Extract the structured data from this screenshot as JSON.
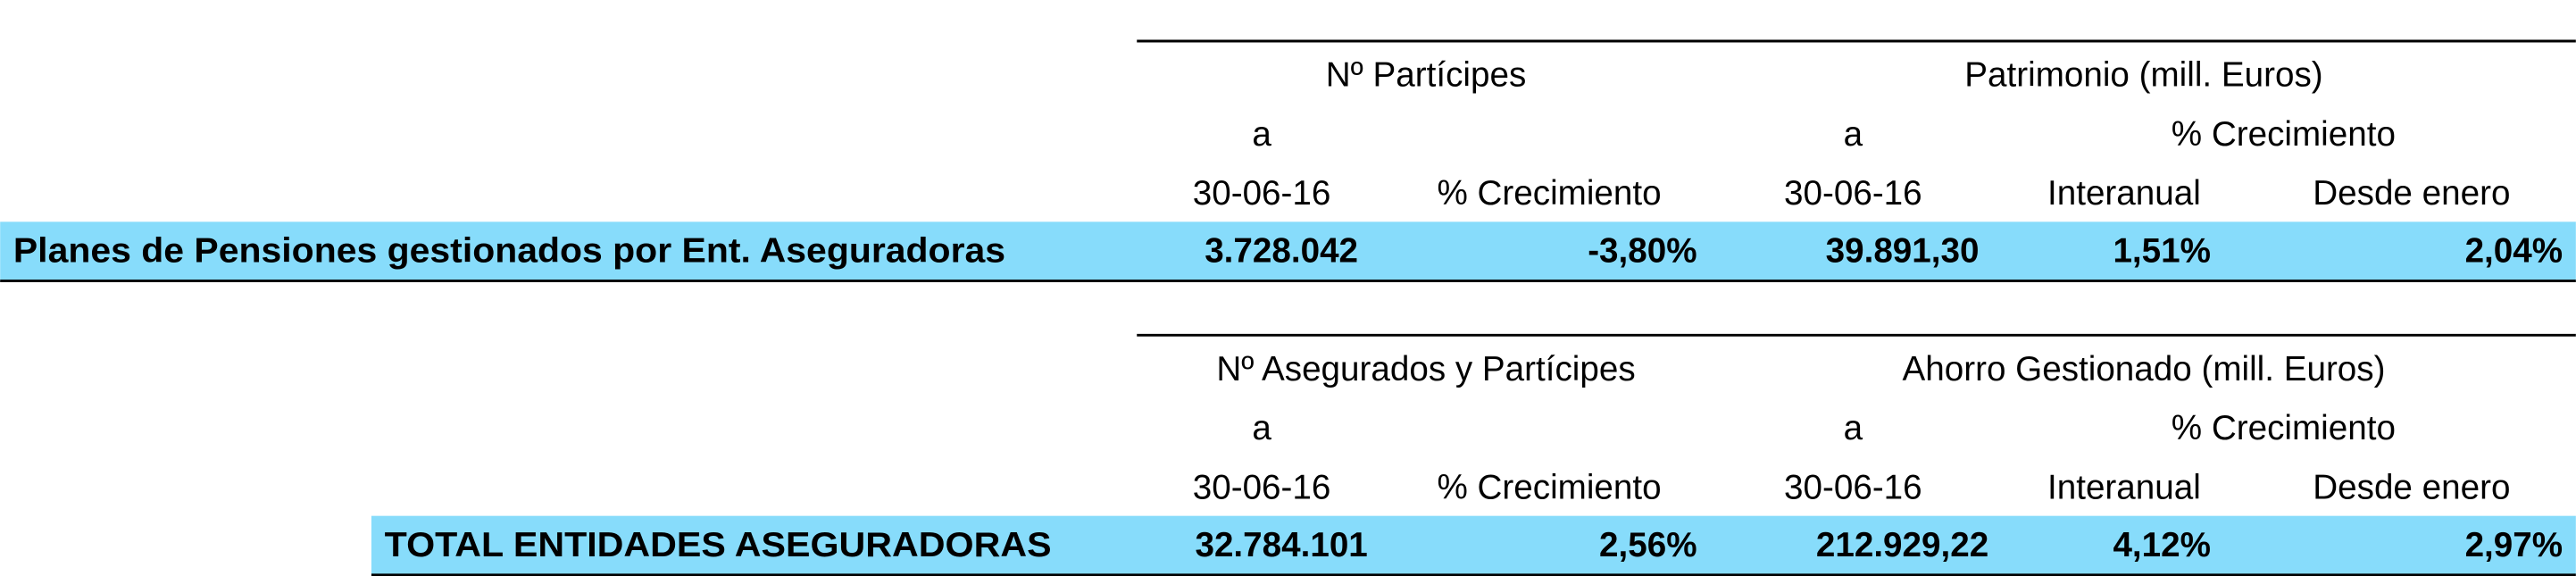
{
  "tables": [
    {
      "left_group": "Nº Partícipes",
      "right_group": "Patrimonio (mill. Euros)",
      "a_left": "a",
      "a_right": "a",
      "growth_group": "% Crecimiento",
      "columns": [
        "30-06-16",
        "% Crecimiento",
        "30-06-16",
        "Interanual",
        "Desde enero"
      ],
      "row": {
        "label": "Planes de Pensiones gestionados por Ent. Aseguradoras",
        "cells": [
          "3.728.042",
          "-3,80%",
          "39.891,30",
          "1,51%",
          "2,04%"
        ]
      }
    },
    {
      "left_group": "Nº Asegurados y Partícipes",
      "right_group": "Ahorro Gestionado (mill. Euros)",
      "a_left": "a",
      "a_right": "a",
      "growth_group": "% Crecimiento",
      "columns": [
        "30-06-16",
        "% Crecimiento",
        "30-06-16",
        "Interanual",
        "Desde enero"
      ],
      "row": {
        "label": "TOTAL ENTIDADES ASEGURADORAS",
        "cells": [
          "32.784.101",
          "2,56%",
          "212.929,22",
          "4,12%",
          "2,97%"
        ]
      }
    }
  ]
}
